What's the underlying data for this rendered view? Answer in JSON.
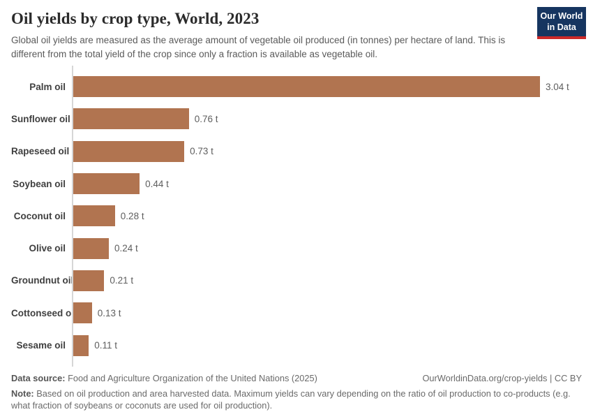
{
  "header": {
    "title": "Oil yields by crop type, World, 2023",
    "subtitle": "Global oil yields are measured as the average amount of vegetable oil produced (in tonnes) per hectare of land. This is different from the total yield of the crop since only a fraction is available as vegetable oil.",
    "logo": {
      "line1": "Our World",
      "line2": "in Data",
      "bg_color": "#163560",
      "accent_color": "#cc2a29"
    }
  },
  "chart_data": {
    "type": "bar",
    "orientation": "horizontal",
    "title": "Oil yields by crop type, World, 2023",
    "categories": [
      "Palm oil",
      "Sunflower oil",
      "Rapeseed oil",
      "Soybean oil",
      "Coconut oil",
      "Olive oil",
      "Groundnut oil",
      "Cottonseed oil",
      "Sesame oil"
    ],
    "values": [
      3.04,
      0.76,
      0.73,
      0.44,
      0.28,
      0.24,
      0.21,
      0.13,
      0.11
    ],
    "value_labels": [
      "3.04 t",
      "0.76 t",
      "0.73 t",
      "0.44 t",
      "0.28 t",
      "0.24 t",
      "0.21 t",
      "0.13 t",
      "0.11 t"
    ],
    "unit": "tonnes per hectare",
    "xlim": [
      0,
      3.04
    ],
    "grid": false,
    "legend": "none",
    "bar_color": "#b17450",
    "axis_color": "#d6d6d6"
  },
  "footer": {
    "data_source_label": "Data source:",
    "data_source_text": " Food and Agriculture Organization of the United Nations (2025)",
    "link": "OurWorldinData.org/crop-yields | CC BY",
    "note_label": "Note:",
    "note_text": " Based on oil production and area harvested data. Maximum yields can vary depending on the ratio of oil production to co-products (e.g. what fraction of soybeans or coconuts are used for oil production)."
  }
}
